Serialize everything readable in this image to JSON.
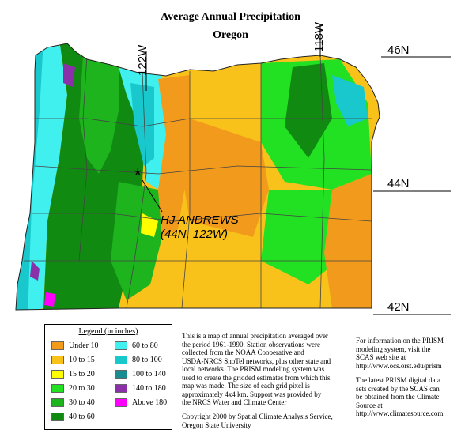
{
  "title": "Average Annual Precipitation",
  "subtitle": "Oregon",
  "latitudes": [
    "46N",
    "44N",
    "42N"
  ],
  "longitudes": [
    "122W",
    "118W"
  ],
  "site": {
    "marker": "*",
    "name": "HJ ANDREWS",
    "coords": "(44N, 122W)"
  },
  "legend": {
    "title": "Legend (in inches)",
    "items": [
      {
        "label": "Under 10",
        "color": "#f29a1c"
      },
      {
        "label": "10 to 15",
        "color": "#f9c21b"
      },
      {
        "label": "15 to 20",
        "color": "#ffff00"
      },
      {
        "label": "20 to 30",
        "color": "#22e022"
      },
      {
        "label": "30 to 40",
        "color": "#1eb41e"
      },
      {
        "label": "40 to 60",
        "color": "#108a10"
      },
      {
        "label": "60 to 80",
        "color": "#40f0ef"
      },
      {
        "label": "80 to 100",
        "color": "#18c8cc"
      },
      {
        "label": "100 to 140",
        "color": "#188c90"
      },
      {
        "label": "140 to 180",
        "color": "#8a30a8"
      },
      {
        "label": "Above 180",
        "color": "#ff00ff"
      }
    ]
  },
  "description": [
    "This is a map of annual precipitation averaged over",
    "the period 1961-1990. Station observations were",
    "collected from the NOAA Cooperative and",
    "USDA-NRCS SnoTel networks, plus other state and",
    "local networks. The PRISM modeling system was",
    "used to create the gridded estimates from which this",
    "map was made. The size of each grid pixel is",
    "approximately 4x4 km. Support was provided by",
    "the NRCS Water and Climate Center"
  ],
  "copyright": [
    "Copyright 2000 by Spatial Climate Analysis Service,",
    "Oregon State University"
  ],
  "prism_info": [
    "For information on the PRISM",
    "modeling system, visit the",
    "SCAS web site at",
    "http://www.ocs.orst.edu/prism"
  ],
  "datasets_info": [
    "The latest PRISM digital data",
    "sets created by the SCAS can",
    "be obtained from the Climate",
    "Source at",
    "http://www.climatesource.com"
  ]
}
